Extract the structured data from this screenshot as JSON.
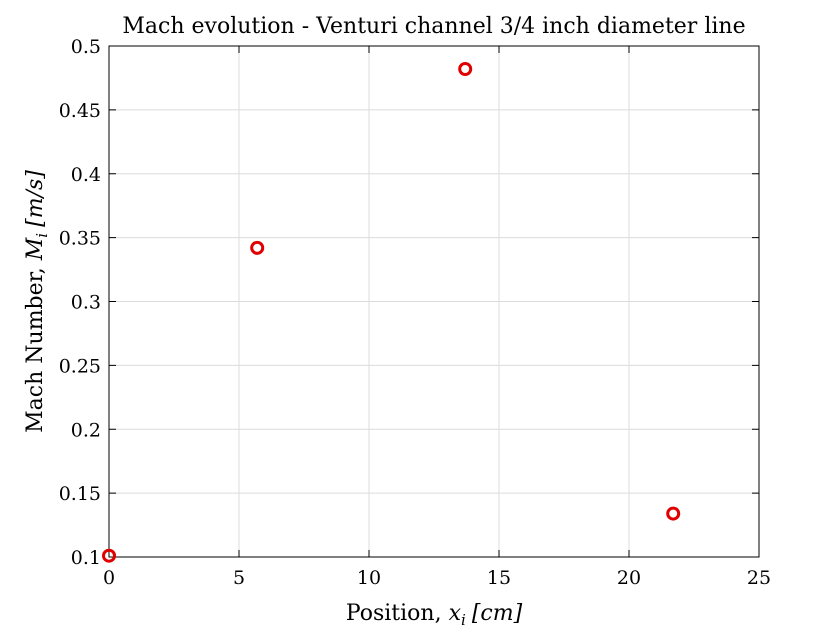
{
  "chart_data": {
    "type": "scatter",
    "title": "Mach evolution - Venturi channel 3/4 inch diameter line",
    "xlabel": "Position, x_i [cm]",
    "xlabel_parts": {
      "base": "Position, ",
      "var": "x",
      "sub": "i",
      "unit": "[cm]"
    },
    "ylabel": "Mach Number, M_i [m/s]",
    "ylabel_parts": {
      "base": "Mach Number, ",
      "var": "M",
      "sub": "i",
      "unit": "[m/s]"
    },
    "xlim": [
      0,
      25
    ],
    "ylim": [
      0.1,
      0.5
    ],
    "xticks": [
      0,
      5,
      10,
      15,
      20,
      25
    ],
    "xtick_labels": [
      "0",
      "5",
      "10",
      "15",
      "20",
      "25"
    ],
    "yticks": [
      0.1,
      0.15,
      0.2,
      0.25,
      0.3,
      0.35,
      0.4,
      0.45,
      0.5
    ],
    "ytick_labels": [
      "0.1",
      "0.15",
      "0.2",
      "0.25",
      "0.3",
      "0.35",
      "0.4",
      "0.45",
      "0.5"
    ],
    "grid": true,
    "series": [
      {
        "marker": "circle-open",
        "color": "#e00000",
        "x": [
          0,
          5.7,
          13.7,
          21.7
        ],
        "y": [
          0.101,
          0.342,
          0.482,
          0.134
        ]
      }
    ]
  }
}
